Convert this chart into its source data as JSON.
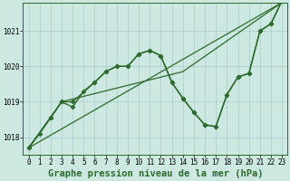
{
  "background_color": "#cce8e0",
  "grid_color": "#aacccc",
  "line_color": "#2d6a2d",
  "title": "Graphe pression niveau de la mer (hPa)",
  "xlim": [
    -0.5,
    23.5
  ],
  "ylim": [
    1017.5,
    1021.8
  ],
  "yticks": [
    1018,
    1019,
    1020,
    1021
  ],
  "xticks": [
    0,
    1,
    2,
    3,
    4,
    5,
    6,
    7,
    8,
    9,
    10,
    11,
    12,
    13,
    14,
    15,
    16,
    17,
    18,
    19,
    20,
    21,
    22,
    23
  ],
  "series": [
    {
      "x": [
        0,
        23
      ],
      "y": [
        1017.7,
        1021.8
      ],
      "marker": null,
      "linewidth": 0.9
    },
    {
      "x": [
        0,
        3,
        14,
        23
      ],
      "y": [
        1017.7,
        1019.0,
        1019.85,
        1021.8
      ],
      "marker": null,
      "linewidth": 0.9
    },
    {
      "x": [
        0,
        1,
        2,
        3,
        4,
        5,
        6,
        7,
        8,
        9,
        10,
        11,
        12,
        13,
        14,
        15,
        16,
        17,
        18,
        19,
        20,
        21,
        22,
        23
      ],
      "y": [
        1017.7,
        1018.1,
        1018.55,
        1019.0,
        1018.85,
        1019.3,
        1019.55,
        1019.85,
        1020.0,
        1020.0,
        1020.35,
        1020.45,
        1020.3,
        1019.55,
        1019.1,
        1018.7,
        1018.35,
        1018.3,
        1019.2,
        1019.7,
        1019.8,
        1021.0,
        1021.2,
        1021.85
      ],
      "marker": "D",
      "linewidth": 1.0
    },
    {
      "x": [
        0,
        2,
        3,
        4,
        6,
        7,
        8,
        9,
        10,
        11,
        12,
        13,
        14,
        15,
        16,
        17,
        18,
        19,
        20,
        21,
        22,
        23
      ],
      "y": [
        1017.7,
        1018.55,
        1019.0,
        1019.0,
        1019.55,
        1019.85,
        1020.0,
        1020.0,
        1020.35,
        1020.45,
        1020.3,
        1019.55,
        1019.1,
        1018.7,
        1018.35,
        1018.3,
        1019.2,
        1019.7,
        1019.8,
        1021.0,
        1021.2,
        1021.85
      ],
      "marker": "D",
      "linewidth": 1.0
    }
  ],
  "title_fontsize": 7.5,
  "tick_fontsize": 5.5,
  "marker_size": 2.5
}
